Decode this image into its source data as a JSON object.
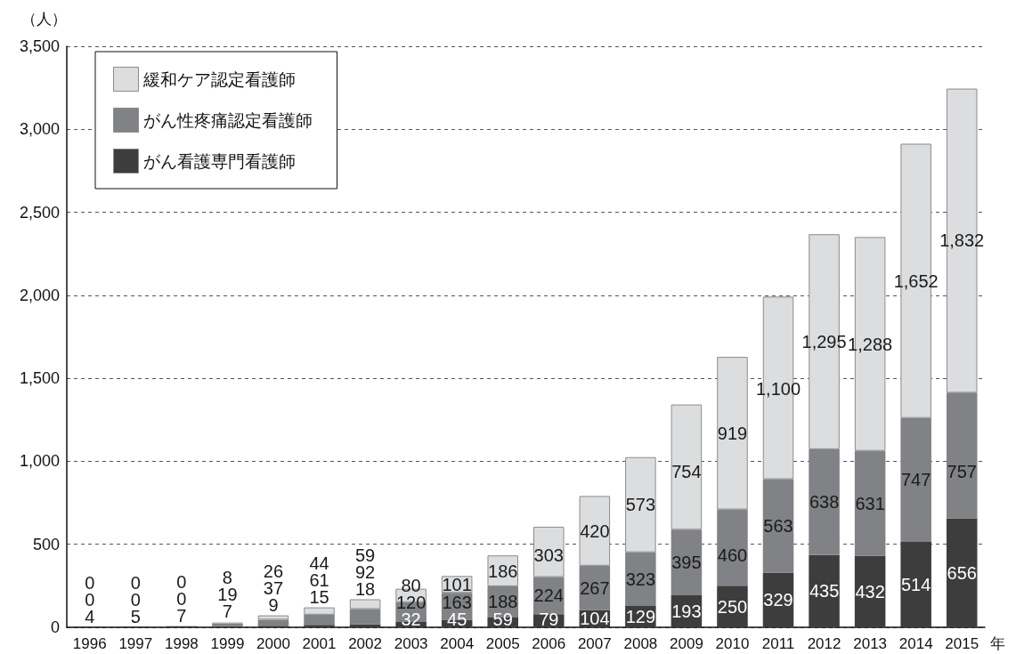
{
  "chart_data": {
    "type": "bar",
    "stacked": true,
    "ylabel": "（人）",
    "xlabel": "年",
    "categories": [
      "1996",
      "1997",
      "1998",
      "1999",
      "2000",
      "2001",
      "2002",
      "2003",
      "2004",
      "2005",
      "2006",
      "2007",
      "2008",
      "2009",
      "2010",
      "2011",
      "2012",
      "2013",
      "2014",
      "2015"
    ],
    "series": [
      {
        "name": "がん看護専門看護師",
        "color": "#3d3d3d",
        "values": [
          4,
          5,
          7,
          7,
          9,
          15,
          18,
          32,
          45,
          59,
          79,
          104,
          129,
          193,
          250,
          329,
          435,
          432,
          514,
          656
        ],
        "value_labels": [
          "4",
          "5",
          "7",
          "7",
          "9",
          "15",
          "18",
          "32",
          "45",
          "59",
          "79",
          "104",
          "129",
          "193",
          "250",
          "329",
          "435",
          "432",
          "514",
          "656"
        ]
      },
      {
        "name": "がん性疼痛認定看護師",
        "color": "#818286",
        "values": [
          0,
          0,
          0,
          19,
          37,
          61,
          92,
          120,
          163,
          188,
          224,
          267,
          323,
          395,
          460,
          563,
          638,
          631,
          747,
          757
        ],
        "value_labels": [
          "0",
          "0",
          "0",
          "19",
          "37",
          "61",
          "92",
          "120",
          "163",
          "188",
          "224",
          "267",
          "323",
          "395",
          "460",
          "563",
          "638",
          "631",
          "747",
          "757"
        ]
      },
      {
        "name": "緩和ケア認定看護師",
        "color": "#dcdddf",
        "values": [
          0,
          0,
          0,
          8,
          26,
          44,
          59,
          80,
          101,
          186,
          303,
          420,
          573,
          754,
          919,
          1100,
          1295,
          1288,
          1652,
          1832
        ],
        "value_labels": [
          "0",
          "0",
          "0",
          "8",
          "26",
          "44",
          "59",
          "80",
          "101",
          "186",
          "303",
          "420",
          "573",
          "754",
          "919",
          "1,100",
          "1,295",
          "1,288",
          "1,652",
          "1,832"
        ]
      }
    ],
    "ylim": [
      0,
      3500
    ],
    "yticks": [
      0,
      500,
      {
        "value": 1000,
        "label": "1,000"
      },
      {
        "value": 1500,
        "label": "1,500"
      },
      {
        "value": 2000,
        "label": "2,000"
      },
      {
        "value": 2500,
        "label": "2,500"
      },
      {
        "value": 3000,
        "label": "3,000"
      },
      {
        "value": 3500,
        "label": "3,500"
      }
    ],
    "grid": "y",
    "legend": "top left"
  }
}
